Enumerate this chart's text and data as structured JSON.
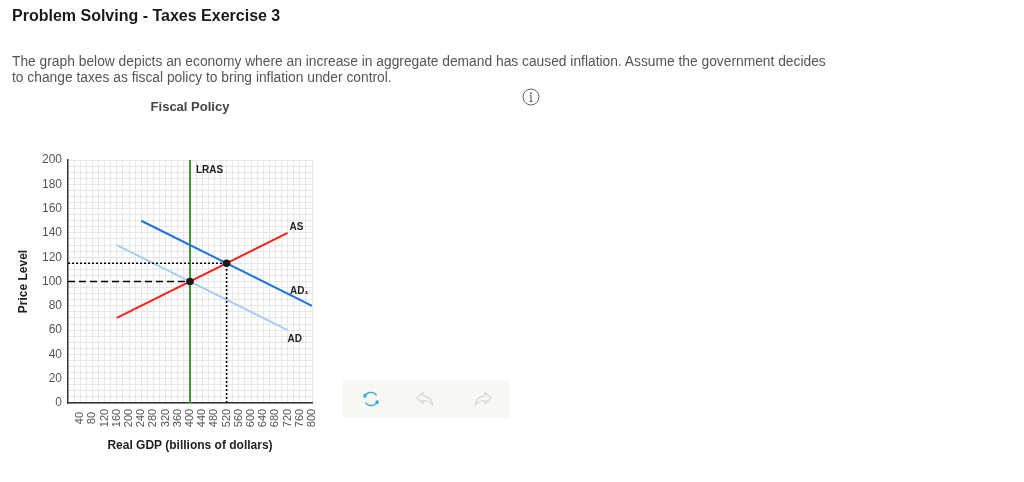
{
  "chart_data": {
    "type": "line",
    "title": "Problem Solving - Taxes Exercise 3",
    "subtitle": "The graph below depicts an economy where an increase in aggregate demand has caused inflation. Assume the government decides to change taxes as fiscal policy to bring inflation under control.",
    "annotations": [
      "Fiscal Policy"
    ],
    "xlabel": "Real GDP (billions of dollars)",
    "ylabel": "Price Level",
    "xlim": [
      0,
      800
    ],
    "ylim": [
      0,
      200
    ],
    "grid": true,
    "xticks": [
      {
        "value": 20,
        "label": null
      },
      40,
      {
        "value": 60,
        "label": null
      },
      80,
      {
        "value": 100,
        "label": null
      },
      120,
      {
        "value": 140,
        "label": null
      },
      160,
      {
        "value": 180,
        "label": null
      },
      200,
      {
        "value": 220,
        "label": null
      },
      240,
      {
        "value": 260,
        "label": null
      },
      280,
      {
        "value": 300,
        "label": null
      },
      320,
      {
        "value": 340,
        "label": null
      },
      360,
      {
        "value": 380,
        "label": null
      },
      400,
      {
        "value": 420,
        "label": null
      },
      440,
      {
        "value": 460,
        "label": null
      },
      480,
      {
        "value": 500,
        "label": null
      },
      520,
      {
        "value": 540,
        "label": null
      },
      560,
      {
        "value": 580,
        "label": null
      },
      600,
      {
        "value": 620,
        "label": null
      },
      640,
      {
        "value": 660,
        "label": null
      },
      680,
      {
        "value": 700,
        "label": null
      },
      720,
      {
        "value": 740,
        "label": null
      },
      760,
      {
        "value": 780,
        "label": null
      },
      800
    ],
    "yticks": [
      0,
      {
        "value": 5,
        "label": null
      },
      {
        "value": 10,
        "label": null
      },
      {
        "value": 15,
        "label": null
      },
      20,
      {
        "value": 25,
        "label": null
      },
      {
        "value": 30,
        "label": null
      },
      {
        "value": 35,
        "label": null
      },
      40,
      {
        "value": 45,
        "label": null
      },
      {
        "value": 50,
        "label": null
      },
      {
        "value": 55,
        "label": null
      },
      60,
      {
        "value": 65,
        "label": null
      },
      {
        "value": 70,
        "label": null
      },
      {
        "value": 75,
        "label": null
      },
      80,
      {
        "value": 85,
        "label": null
      },
      {
        "value": 90,
        "label": null
      },
      {
        "value": 95,
        "label": null
      },
      100,
      {
        "value": 105,
        "label": null
      },
      {
        "value": 110,
        "label": null
      },
      {
        "value": 115,
        "label": null
      },
      120,
      {
        "value": 125,
        "label": null
      },
      {
        "value": 130,
        "label": null
      },
      {
        "value": 135,
        "label": null
      },
      140,
      {
        "value": 145,
        "label": null
      },
      {
        "value": 150,
        "label": null
      },
      {
        "value": 155,
        "label": null
      },
      160,
      {
        "value": 165,
        "label": null
      },
      {
        "value": 170,
        "label": null
      },
      {
        "value": 175,
        "label": null
      },
      180,
      {
        "value": 185,
        "label": null
      },
      {
        "value": 190,
        "label": null
      },
      {
        "value": 195,
        "label": null
      },
      200
    ],
    "series": [
      {
        "name": "LRAS",
        "color": "#3e9a2c",
        "x": [
          400,
          400
        ],
        "values": [
          0,
          200
        ]
      },
      {
        "name": "AS",
        "color": "#ff1f1f",
        "x": [
          160,
          720
        ],
        "values": [
          70,
          140
        ]
      },
      {
        "name": "AD₁",
        "color": "#1a74e6",
        "x": [
          240,
          800
        ],
        "values": [
          150,
          80
        ]
      },
      {
        "name": "AD",
        "color": "#a8cdf4",
        "x": [
          160,
          720
        ],
        "values": [
          130,
          60
        ]
      },
      {
        "color": "#000000",
        "x": [
          0,
          400
        ],
        "values": [
          100,
          100
        ],
        "line_style": "dashed"
      },
      {
        "color": "#000000",
        "x": [
          0,
          520
        ],
        "values": [
          115,
          115
        ],
        "line_style": "dotted"
      },
      {
        "color": "#000000",
        "x": [
          520,
          520
        ],
        "values": [
          0,
          115
        ],
        "line_style": "dotted"
      },
      {
        "type": "scatter",
        "color": "#1a1a1a",
        "x": [
          400,
          520
        ],
        "values": [
          100,
          115
        ],
        "marker": "circle"
      }
    ]
  }
}
